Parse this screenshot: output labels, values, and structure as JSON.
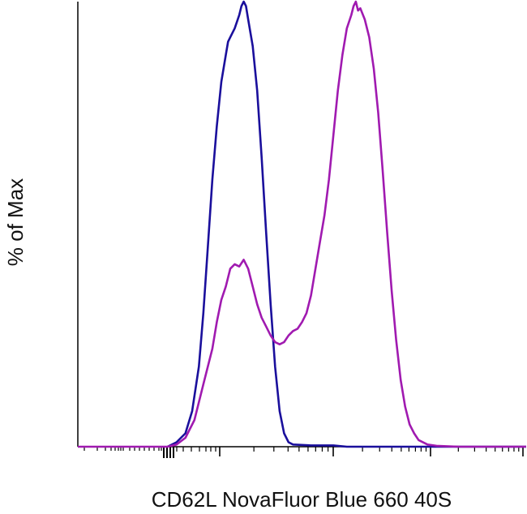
{
  "chart_data": {
    "type": "line",
    "title": "",
    "xlabel": "CD62L NovaFluor Blue 660 40S",
    "ylabel": "% of Max",
    "xscale": "biexponential",
    "ylim": [
      0,
      100
    ],
    "grid": false,
    "legend": "none",
    "tick_labels": [],
    "series": [
      {
        "color": "#1a0f9c",
        "points": [
          [
            0.2,
            0
          ],
          [
            0.22,
            1
          ],
          [
            0.24,
            3
          ],
          [
            0.255,
            8
          ],
          [
            0.27,
            18
          ],
          [
            0.28,
            30
          ],
          [
            0.29,
            45
          ],
          [
            0.3,
            60
          ],
          [
            0.31,
            72
          ],
          [
            0.32,
            82
          ],
          [
            0.33,
            88
          ],
          [
            0.335,
            91
          ],
          [
            0.34,
            92
          ],
          [
            0.35,
            94
          ],
          [
            0.36,
            97
          ],
          [
            0.365,
            99
          ],
          [
            0.37,
            100
          ],
          [
            0.375,
            99
          ],
          [
            0.38,
            96
          ],
          [
            0.39,
            90
          ],
          [
            0.4,
            80
          ],
          [
            0.41,
            65
          ],
          [
            0.42,
            48
          ],
          [
            0.43,
            32
          ],
          [
            0.44,
            18
          ],
          [
            0.45,
            8
          ],
          [
            0.46,
            3
          ],
          [
            0.47,
            1
          ],
          [
            0.48,
            0.5
          ],
          [
            0.52,
            0.3
          ],
          [
            0.57,
            0.3
          ],
          [
            0.6,
            0
          ],
          [
            1.0,
            0
          ]
        ]
      },
      {
        "color": "#a01ab0",
        "points": [
          [
            0.0,
            0
          ],
          [
            0.2,
            0
          ],
          [
            0.22,
            0.5
          ],
          [
            0.24,
            2
          ],
          [
            0.26,
            6
          ],
          [
            0.28,
            14
          ],
          [
            0.3,
            22
          ],
          [
            0.31,
            28
          ],
          [
            0.32,
            33
          ],
          [
            0.33,
            36
          ],
          [
            0.34,
            40
          ],
          [
            0.35,
            41
          ],
          [
            0.36,
            40.5
          ],
          [
            0.37,
            42
          ],
          [
            0.38,
            40
          ],
          [
            0.39,
            36
          ],
          [
            0.4,
            32
          ],
          [
            0.41,
            29
          ],
          [
            0.42,
            27
          ],
          [
            0.43,
            25
          ],
          [
            0.44,
            23.5
          ],
          [
            0.45,
            23
          ],
          [
            0.46,
            23.5
          ],
          [
            0.47,
            25
          ],
          [
            0.48,
            26
          ],
          [
            0.49,
            26.5
          ],
          [
            0.5,
            28
          ],
          [
            0.51,
            30
          ],
          [
            0.52,
            34
          ],
          [
            0.53,
            40
          ],
          [
            0.54,
            46
          ],
          [
            0.55,
            52
          ],
          [
            0.56,
            60
          ],
          [
            0.57,
            70
          ],
          [
            0.58,
            80
          ],
          [
            0.59,
            88
          ],
          [
            0.6,
            94
          ],
          [
            0.61,
            97
          ],
          [
            0.615,
            99
          ],
          [
            0.62,
            100
          ],
          [
            0.625,
            98
          ],
          [
            0.63,
            98.5
          ],
          [
            0.64,
            96
          ],
          [
            0.65,
            92
          ],
          [
            0.66,
            85
          ],
          [
            0.67,
            75
          ],
          [
            0.68,
            62
          ],
          [
            0.69,
            48
          ],
          [
            0.7,
            35
          ],
          [
            0.71,
            24
          ],
          [
            0.72,
            15
          ],
          [
            0.73,
            9
          ],
          [
            0.74,
            5
          ],
          [
            0.75,
            3
          ],
          [
            0.76,
            1.5
          ],
          [
            0.78,
            0.5
          ],
          [
            0.8,
            0.2
          ],
          [
            0.85,
            0
          ],
          [
            1.0,
            0
          ]
        ]
      }
    ]
  }
}
